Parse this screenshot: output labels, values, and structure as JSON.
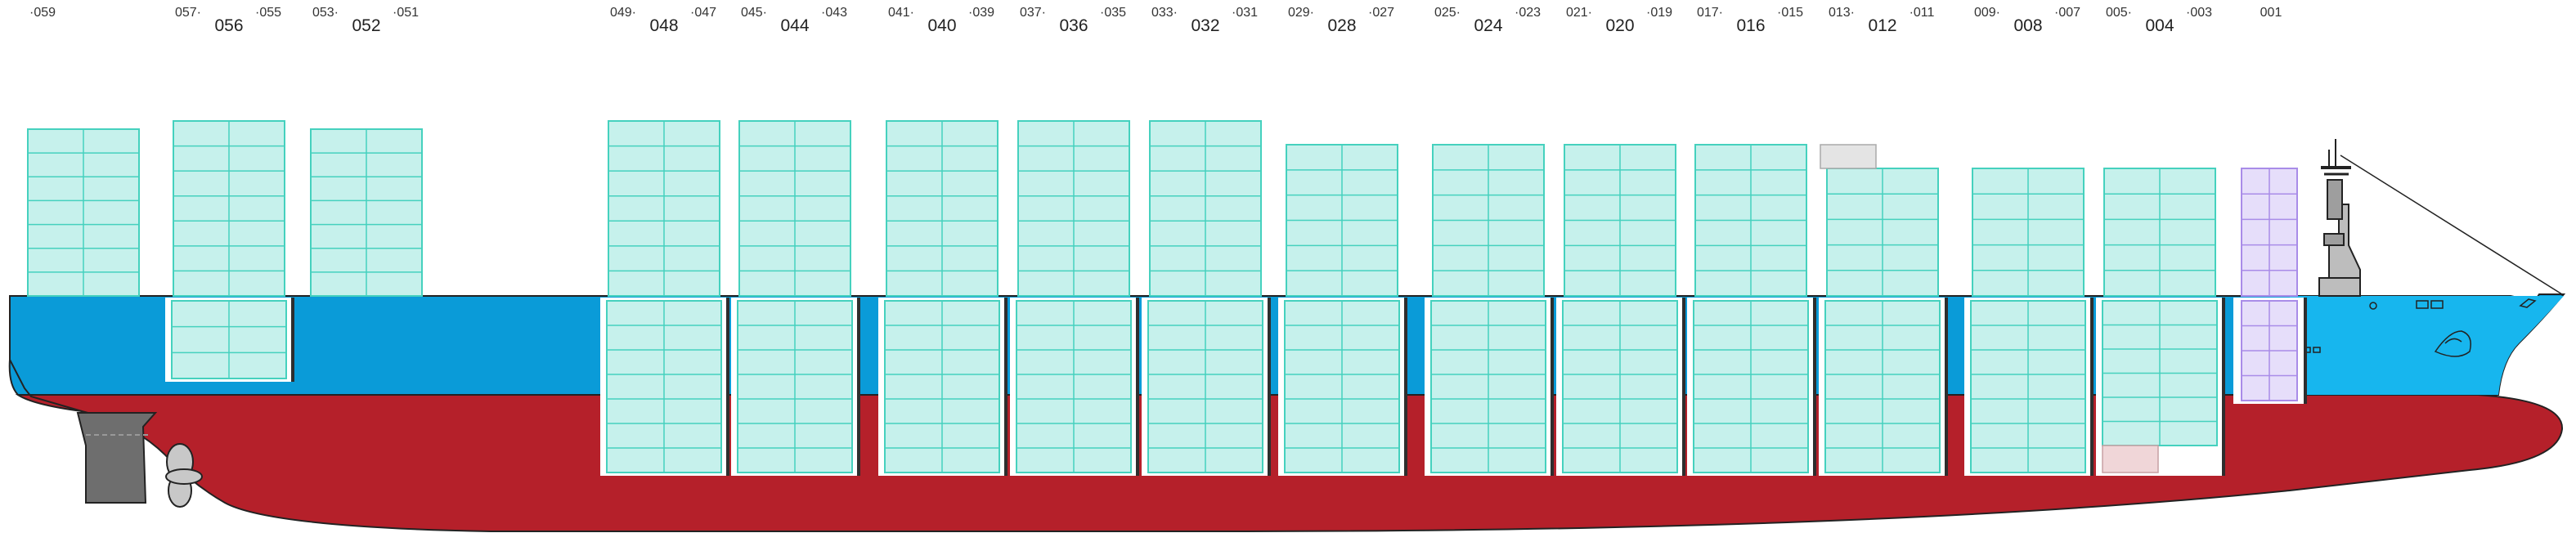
{
  "diagram": {
    "type": "container-ship-bay-plan",
    "colors": {
      "hull_red": "#B5202A",
      "hull_blue": "#0A9BD8",
      "hull_blue_light": "#17B6EE",
      "container_fill": "#C6F1EC",
      "container_stroke": "#45D1BE",
      "reefer_fill": "#E6DEFA",
      "reefer_stroke": "#A98CE8",
      "empty_slot_fill": "#E4E4E4",
      "hatch_frame": "#2E2E2E",
      "superstructure": "#BDBDBD",
      "rudder": "#6E6E6E"
    },
    "bays": [
      {
        "id": "b059",
        "odd_left": "059",
        "even": "",
        "odd_right": ""
      },
      {
        "id": "b056",
        "odd_left": "057",
        "even": "056",
        "odd_right": "055"
      },
      {
        "id": "b052",
        "odd_left": "053",
        "even": "052",
        "odd_right": "051"
      },
      {
        "id": "b048",
        "odd_left": "049",
        "even": "048",
        "odd_right": "047"
      },
      {
        "id": "b044",
        "odd_left": "045",
        "even": "044",
        "odd_right": "043"
      },
      {
        "id": "b040",
        "odd_left": "041",
        "even": "040",
        "odd_right": "039"
      },
      {
        "id": "b036",
        "odd_left": "037",
        "even": "036",
        "odd_right": "035"
      },
      {
        "id": "b032",
        "odd_left": "033",
        "even": "032",
        "odd_right": "031"
      },
      {
        "id": "b028",
        "odd_left": "029",
        "even": "028",
        "odd_right": "027"
      },
      {
        "id": "b024",
        "odd_left": "025",
        "even": "024",
        "odd_right": "023"
      },
      {
        "id": "b020",
        "odd_left": "021",
        "even": "020",
        "odd_right": "019"
      },
      {
        "id": "b016",
        "odd_left": "017",
        "even": "016",
        "odd_right": "015"
      },
      {
        "id": "b012",
        "odd_left": "013",
        "even": "012",
        "odd_right": "011"
      },
      {
        "id": "b008",
        "odd_left": "009",
        "even": "008",
        "odd_right": "007"
      },
      {
        "id": "b004",
        "odd_left": "005",
        "even": "004",
        "odd_right": "003"
      },
      {
        "id": "b001",
        "odd_left": "",
        "even": "",
        "odd_right": "001"
      }
    ]
  }
}
